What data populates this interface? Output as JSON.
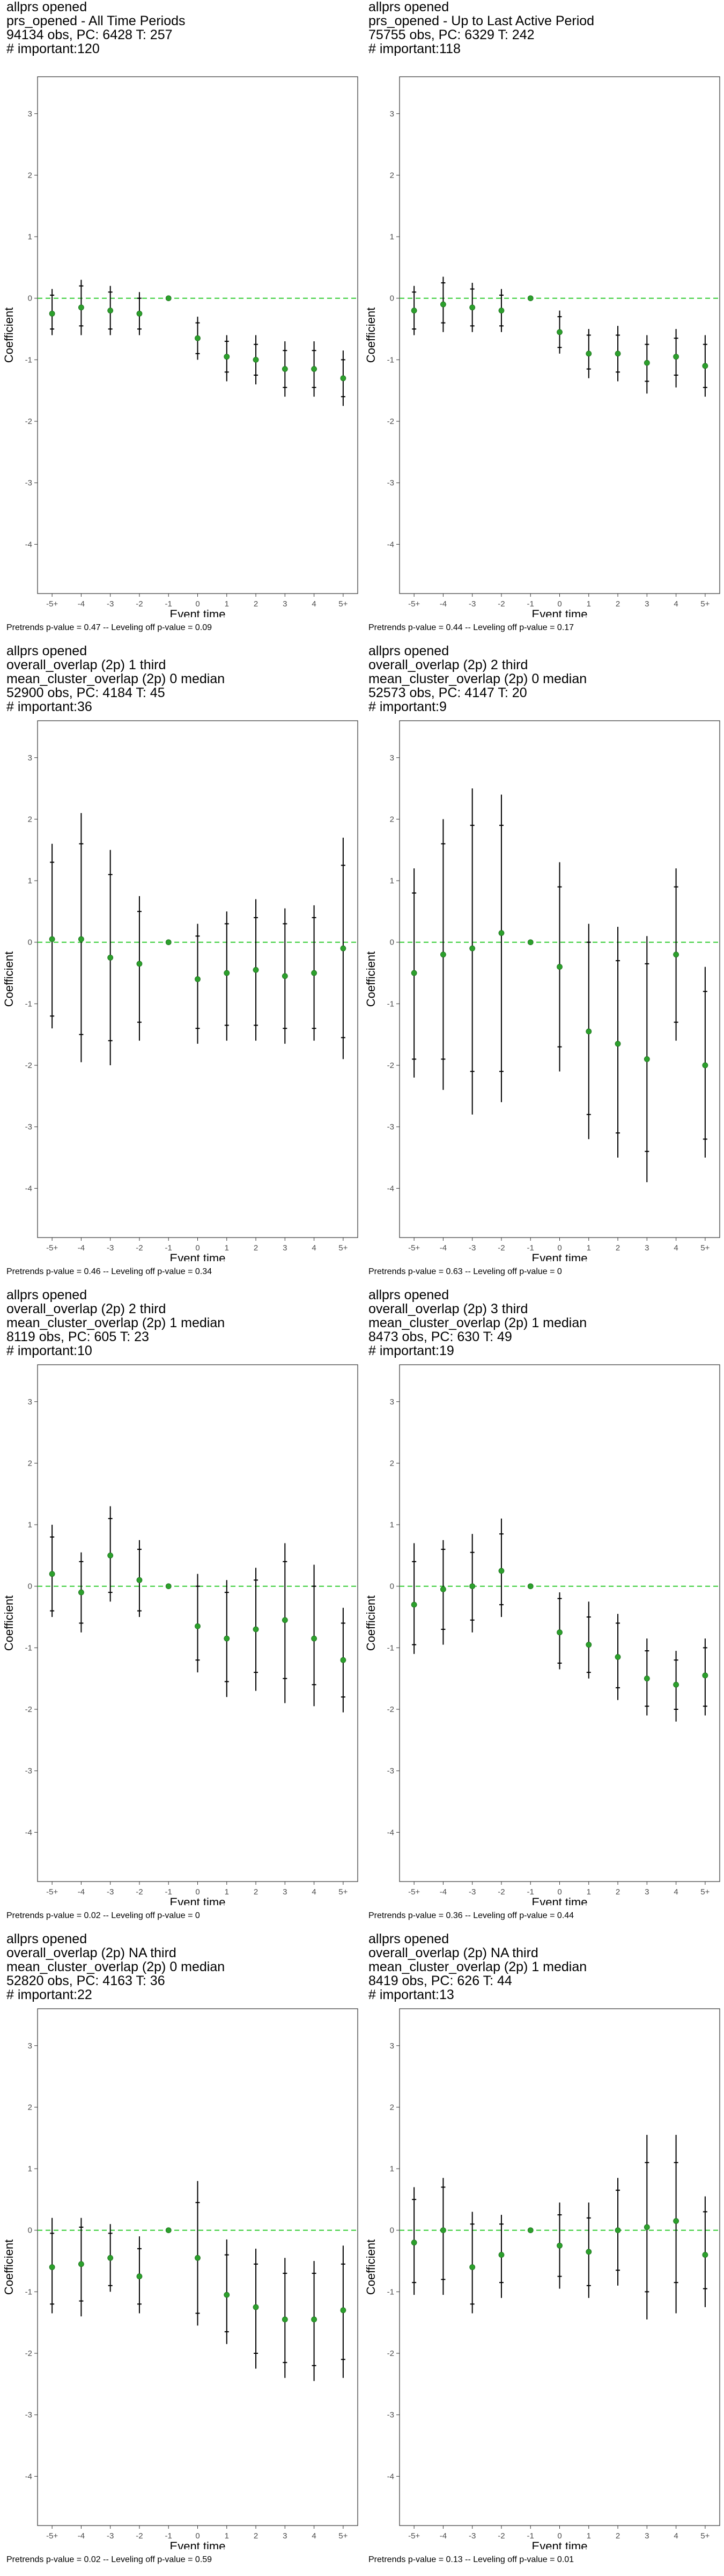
{
  "colors": {
    "point": "#2ca02c",
    "zero_line": "#33cc33",
    "bar": "#000000",
    "frame": "#333333",
    "tick_text": "#4d4d4d"
  },
  "chart_data": [
    {
      "type": "scatter",
      "title_lines": [
        "allprs opened",
        "prs_opened - All Time Periods",
        "94134 obs, PC: 6428 T: 257",
        "# important:120"
      ],
      "footnote": "Pretrends p-value = 0.47 -- Leveling off p-value = 0.09",
      "xlabel": "Event time",
      "ylabel": "Coefficient",
      "categories": [
        "-5+",
        "-4",
        "-3",
        "-2",
        "-1",
        "0",
        "1",
        "2",
        "3",
        "4",
        "5+"
      ],
      "ylim": [
        -4.8,
        3.6
      ],
      "yticks": [
        -4,
        -3,
        -2,
        -1,
        0,
        1,
        2,
        3
      ],
      "values": [
        -0.25,
        -0.15,
        -0.2,
        -0.25,
        0,
        -0.65,
        -0.95,
        -1.0,
        -1.15,
        -1.15,
        -1.3
      ],
      "ci_inner": [
        [
          -0.5,
          0.05
        ],
        [
          -0.45,
          0.2
        ],
        [
          -0.5,
          0.1
        ],
        [
          -0.5,
          0.0
        ],
        [
          0,
          0
        ],
        [
          -0.9,
          -0.4
        ],
        [
          -1.2,
          -0.7
        ],
        [
          -1.25,
          -0.75
        ],
        [
          -1.45,
          -0.85
        ],
        [
          -1.45,
          -0.85
        ],
        [
          -1.6,
          -1.0
        ]
      ],
      "ci_outer": [
        [
          -0.6,
          0.15
        ],
        [
          -0.6,
          0.3
        ],
        [
          -0.6,
          0.2
        ],
        [
          -0.6,
          0.1
        ],
        [
          0,
          0
        ],
        [
          -1.0,
          -0.3
        ],
        [
          -1.35,
          -0.6
        ],
        [
          -1.4,
          -0.6
        ],
        [
          -1.6,
          -0.7
        ],
        [
          -1.6,
          -0.7
        ],
        [
          -1.75,
          -0.85
        ]
      ]
    },
    {
      "type": "scatter",
      "title_lines": [
        "allprs opened",
        "prs_opened - Up to Last Active Period",
        "75755 obs, PC: 6329 T: 242",
        "# important:118"
      ],
      "footnote": "Pretrends p-value = 0.44 -- Leveling off p-value = 0.17",
      "xlabel": "Event time",
      "ylabel": "Coefficient",
      "categories": [
        "-5+",
        "-4",
        "-3",
        "-2",
        "-1",
        "0",
        "1",
        "2",
        "3",
        "4",
        "5+"
      ],
      "ylim": [
        -4.8,
        3.6
      ],
      "yticks": [
        -4,
        -3,
        -2,
        -1,
        0,
        1,
        2,
        3
      ],
      "values": [
        -0.2,
        -0.1,
        -0.15,
        -0.2,
        0,
        -0.55,
        -0.9,
        -0.9,
        -1.05,
        -0.95,
        -1.1
      ],
      "ci_inner": [
        [
          -0.5,
          0.1
        ],
        [
          -0.4,
          0.25
        ],
        [
          -0.45,
          0.15
        ],
        [
          -0.45,
          0.05
        ],
        [
          0,
          0
        ],
        [
          -0.8,
          -0.3
        ],
        [
          -1.15,
          -0.6
        ],
        [
          -1.2,
          -0.6
        ],
        [
          -1.35,
          -0.75
        ],
        [
          -1.25,
          -0.65
        ],
        [
          -1.45,
          -0.75
        ]
      ],
      "ci_outer": [
        [
          -0.6,
          0.2
        ],
        [
          -0.55,
          0.35
        ],
        [
          -0.55,
          0.25
        ],
        [
          -0.55,
          0.15
        ],
        [
          0,
          0
        ],
        [
          -0.9,
          -0.2
        ],
        [
          -1.3,
          -0.5
        ],
        [
          -1.35,
          -0.45
        ],
        [
          -1.55,
          -0.6
        ],
        [
          -1.45,
          -0.5
        ],
        [
          -1.6,
          -0.6
        ]
      ]
    },
    {
      "type": "scatter",
      "title_lines": [
        "allprs opened",
        "overall_overlap (2p) 1 third",
        "mean_cluster_overlap (2p) 0 median",
        "52900 obs, PC: 4184 T: 45",
        "# important:36"
      ],
      "footnote": "Pretrends p-value = 0.46 -- Leveling off p-value = 0.34",
      "xlabel": "Event time",
      "ylabel": "Coefficient",
      "categories": [
        "-5+",
        "-4",
        "-3",
        "-2",
        "-1",
        "0",
        "1",
        "2",
        "3",
        "4",
        "5+"
      ],
      "ylim": [
        -4.8,
        3.6
      ],
      "yticks": [
        -4,
        -3,
        -2,
        -1,
        0,
        1,
        2,
        3
      ],
      "values": [
        0.05,
        0.05,
        -0.25,
        -0.35,
        0,
        -0.6,
        -0.5,
        -0.45,
        -0.55,
        -0.5,
        -0.1
      ],
      "ci_inner": [
        [
          -1.2,
          1.3
        ],
        [
          -1.5,
          1.6
        ],
        [
          -1.6,
          1.1
        ],
        [
          -1.3,
          0.5
        ],
        [
          0,
          0
        ],
        [
          -1.4,
          0.1
        ],
        [
          -1.35,
          0.3
        ],
        [
          -1.35,
          0.4
        ],
        [
          -1.4,
          0.3
        ],
        [
          -1.4,
          0.4
        ],
        [
          -1.55,
          1.25
        ]
      ],
      "ci_outer": [
        [
          -1.4,
          1.6
        ],
        [
          -1.95,
          2.1
        ],
        [
          -2.0,
          1.5
        ],
        [
          -1.6,
          0.75
        ],
        [
          0,
          0
        ],
        [
          -1.65,
          0.3
        ],
        [
          -1.6,
          0.5
        ],
        [
          -1.6,
          0.7
        ],
        [
          -1.65,
          0.55
        ],
        [
          -1.6,
          0.6
        ],
        [
          -1.9,
          1.7
        ]
      ]
    },
    {
      "type": "scatter",
      "title_lines": [
        "allprs opened",
        "overall_overlap (2p) 2 third",
        "mean_cluster_overlap (2p) 0 median",
        "52573 obs, PC: 4147 T: 20",
        "# important:9"
      ],
      "footnote": "Pretrends p-value = 0.63 -- Leveling off p-value = 0",
      "xlabel": "Event time",
      "ylabel": "Coefficient",
      "categories": [
        "-5+",
        "-4",
        "-3",
        "-2",
        "-1",
        "0",
        "1",
        "2",
        "3",
        "4",
        "5+"
      ],
      "ylim": [
        -4.8,
        3.6
      ],
      "yticks": [
        -4,
        -3,
        -2,
        -1,
        0,
        1,
        2,
        3
      ],
      "values": [
        -0.5,
        -0.2,
        -0.1,
        0.15,
        0,
        -0.4,
        -1.45,
        -1.65,
        -1.9,
        -0.2,
        -2.0
      ],
      "ci_inner": [
        [
          -1.9,
          0.8
        ],
        [
          -1.9,
          1.6
        ],
        [
          -2.1,
          1.9
        ],
        [
          -2.1,
          1.9
        ],
        [
          0,
          0
        ],
        [
          -1.7,
          0.9
        ],
        [
          -2.8,
          0.0
        ],
        [
          -3.1,
          -0.3
        ],
        [
          -3.4,
          -0.35
        ],
        [
          -1.3,
          0.9
        ],
        [
          -3.2,
          -0.8
        ]
      ],
      "ci_outer": [
        [
          -2.2,
          1.2
        ],
        [
          -2.4,
          2.0
        ],
        [
          -2.8,
          2.5
        ],
        [
          -2.6,
          2.4
        ],
        [
          0,
          0
        ],
        [
          -2.1,
          1.3
        ],
        [
          -3.2,
          0.3
        ],
        [
          -3.5,
          0.25
        ],
        [
          -3.9,
          0.1
        ],
        [
          -1.6,
          1.2
        ],
        [
          -3.5,
          -0.4
        ]
      ]
    },
    {
      "type": "scatter",
      "title_lines": [
        "allprs opened",
        "overall_overlap (2p) 2 third",
        "mean_cluster_overlap (2p) 1 median",
        "8119 obs, PC: 605 T: 23",
        "# important:10"
      ],
      "footnote": "Pretrends p-value = 0.02 -- Leveling off p-value = 0",
      "xlabel": "Event time",
      "ylabel": "Coefficient",
      "categories": [
        "-5+",
        "-4",
        "-3",
        "-2",
        "-1",
        "0",
        "1",
        "2",
        "3",
        "4",
        "5+"
      ],
      "ylim": [
        -4.8,
        3.6
      ],
      "yticks": [
        -4,
        -3,
        -2,
        -1,
        0,
        1,
        2,
        3
      ],
      "values": [
        0.2,
        -0.1,
        0.5,
        0.1,
        0,
        -0.65,
        -0.85,
        -0.7,
        -0.55,
        -0.85,
        -1.2
      ],
      "ci_inner": [
        [
          -0.4,
          0.8
        ],
        [
          -0.6,
          0.4
        ],
        [
          -0.1,
          1.1
        ],
        [
          -0.4,
          0.6
        ],
        [
          0,
          0
        ],
        [
          -1.2,
          0.0
        ],
        [
          -1.55,
          -0.1
        ],
        [
          -1.4,
          0.1
        ],
        [
          -1.5,
          0.4
        ],
        [
          -1.6,
          0.0
        ],
        [
          -1.8,
          -0.6
        ]
      ],
      "ci_outer": [
        [
          -0.5,
          1.0
        ],
        [
          -0.75,
          0.55
        ],
        [
          -0.25,
          1.3
        ],
        [
          -0.5,
          0.75
        ],
        [
          0,
          0
        ],
        [
          -1.4,
          0.2
        ],
        [
          -1.8,
          0.1
        ],
        [
          -1.7,
          0.3
        ],
        [
          -1.9,
          0.7
        ],
        [
          -1.95,
          0.35
        ],
        [
          -2.05,
          -0.35
        ]
      ]
    },
    {
      "type": "scatter",
      "title_lines": [
        "allprs opened",
        "overall_overlap (2p) 3 third",
        "mean_cluster_overlap (2p) 1 median",
        "8473 obs, PC: 630 T: 49",
        "# important:19"
      ],
      "footnote": "Pretrends p-value = 0.36 -- Leveling off p-value = 0.44",
      "xlabel": "Event time",
      "ylabel": "Coefficient",
      "categories": [
        "-5+",
        "-4",
        "-3",
        "-2",
        "-1",
        "0",
        "1",
        "2",
        "3",
        "4",
        "5+"
      ],
      "ylim": [
        -4.8,
        3.6
      ],
      "yticks": [
        -4,
        -3,
        -2,
        -1,
        0,
        1,
        2,
        3
      ],
      "values": [
        -0.3,
        -0.05,
        0.0,
        0.25,
        0,
        -0.75,
        -0.95,
        -1.15,
        -1.5,
        -1.6,
        -1.45
      ],
      "ci_inner": [
        [
          -0.95,
          0.4
        ],
        [
          -0.7,
          0.6
        ],
        [
          -0.55,
          0.55
        ],
        [
          -0.3,
          0.85
        ],
        [
          0,
          0
        ],
        [
          -1.25,
          -0.2
        ],
        [
          -1.4,
          -0.5
        ],
        [
          -1.65,
          -0.6
        ],
        [
          -1.95,
          -1.05
        ],
        [
          -2.0,
          -1.2
        ],
        [
          -1.95,
          -1.0
        ]
      ],
      "ci_outer": [
        [
          -1.1,
          0.7
        ],
        [
          -0.95,
          0.75
        ],
        [
          -0.75,
          0.85
        ],
        [
          -0.5,
          1.1
        ],
        [
          0,
          0
        ],
        [
          -1.35,
          -0.1
        ],
        [
          -1.5,
          -0.25
        ],
        [
          -1.85,
          -0.45
        ],
        [
          -2.1,
          -0.85
        ],
        [
          -2.2,
          -1.05
        ],
        [
          -2.1,
          -0.85
        ]
      ]
    },
    {
      "type": "scatter",
      "title_lines": [
        "allprs opened",
        "overall_overlap (2p) NA third",
        "mean_cluster_overlap (2p) 0 median",
        "52820 obs, PC: 4163 T: 36",
        "# important:22"
      ],
      "footnote": "Pretrends p-value = 0.02 -- Leveling off p-value = 0.59",
      "xlabel": "Event time",
      "ylabel": "Coefficient",
      "categories": [
        "-5+",
        "-4",
        "-3",
        "-2",
        "-1",
        "0",
        "1",
        "2",
        "3",
        "4",
        "5+"
      ],
      "ylim": [
        -4.8,
        3.6
      ],
      "yticks": [
        -4,
        -3,
        -2,
        -1,
        0,
        1,
        2,
        3
      ],
      "values": [
        -0.6,
        -0.55,
        -0.45,
        -0.75,
        0,
        -0.45,
        -1.05,
        -1.25,
        -1.45,
        -1.45,
        -1.3
      ],
      "ci_inner": [
        [
          -1.2,
          -0.05
        ],
        [
          -1.15,
          0.05
        ],
        [
          -0.9,
          -0.05
        ],
        [
          -1.2,
          -0.3
        ],
        [
          0,
          0
        ],
        [
          -1.35,
          0.45
        ],
        [
          -1.65,
          -0.4
        ],
        [
          -2.0,
          -0.55
        ],
        [
          -2.15,
          -0.7
        ],
        [
          -2.2,
          -0.7
        ],
        [
          -2.1,
          -0.55
        ]
      ],
      "ci_outer": [
        [
          -1.35,
          0.2
        ],
        [
          -1.4,
          0.2
        ],
        [
          -1.0,
          0.1
        ],
        [
          -1.35,
          -0.1
        ],
        [
          0,
          0
        ],
        [
          -1.55,
          0.8
        ],
        [
          -1.85,
          -0.15
        ],
        [
          -2.25,
          -0.3
        ],
        [
          -2.4,
          -0.45
        ],
        [
          -2.45,
          -0.5
        ],
        [
          -2.4,
          -0.25
        ]
      ]
    },
    {
      "type": "scatter",
      "title_lines": [
        "allprs opened",
        "overall_overlap (2p) NA third",
        "mean_cluster_overlap (2p) 1 median",
        "8419 obs, PC: 626 T: 44",
        "# important:13"
      ],
      "footnote": "Pretrends p-value = 0.13 -- Leveling off p-value = 0.01",
      "xlabel": "Event time",
      "ylabel": "Coefficient",
      "categories": [
        "-5+",
        "-4",
        "-3",
        "-2",
        "-1",
        "0",
        "1",
        "2",
        "3",
        "4",
        "5+"
      ],
      "ylim": [
        -4.8,
        3.6
      ],
      "yticks": [
        -4,
        -3,
        -2,
        -1,
        0,
        1,
        2,
        3
      ],
      "values": [
        -0.2,
        0.0,
        -0.6,
        -0.4,
        0,
        -0.25,
        -0.35,
        0.0,
        0.05,
        0.15,
        -0.4
      ],
      "ci_inner": [
        [
          -0.85,
          0.5
        ],
        [
          -0.8,
          0.7
        ],
        [
          -1.2,
          0.1
        ],
        [
          -0.85,
          0.1
        ],
        [
          0,
          0
        ],
        [
          -0.75,
          0.25
        ],
        [
          -0.9,
          0.2
        ],
        [
          -0.65,
          0.65
        ],
        [
          -1.0,
          1.1
        ],
        [
          -0.85,
          1.1
        ],
        [
          -0.95,
          0.3
        ]
      ],
      "ci_outer": [
        [
          -1.05,
          0.7
        ],
        [
          -1.05,
          0.85
        ],
        [
          -1.35,
          0.3
        ],
        [
          -1.1,
          0.25
        ],
        [
          0,
          0
        ],
        [
          -0.95,
          0.45
        ],
        [
          -1.1,
          0.45
        ],
        [
          -0.9,
          0.85
        ],
        [
          -1.45,
          1.55
        ],
        [
          -1.35,
          1.55
        ],
        [
          -1.25,
          0.55
        ]
      ]
    }
  ]
}
